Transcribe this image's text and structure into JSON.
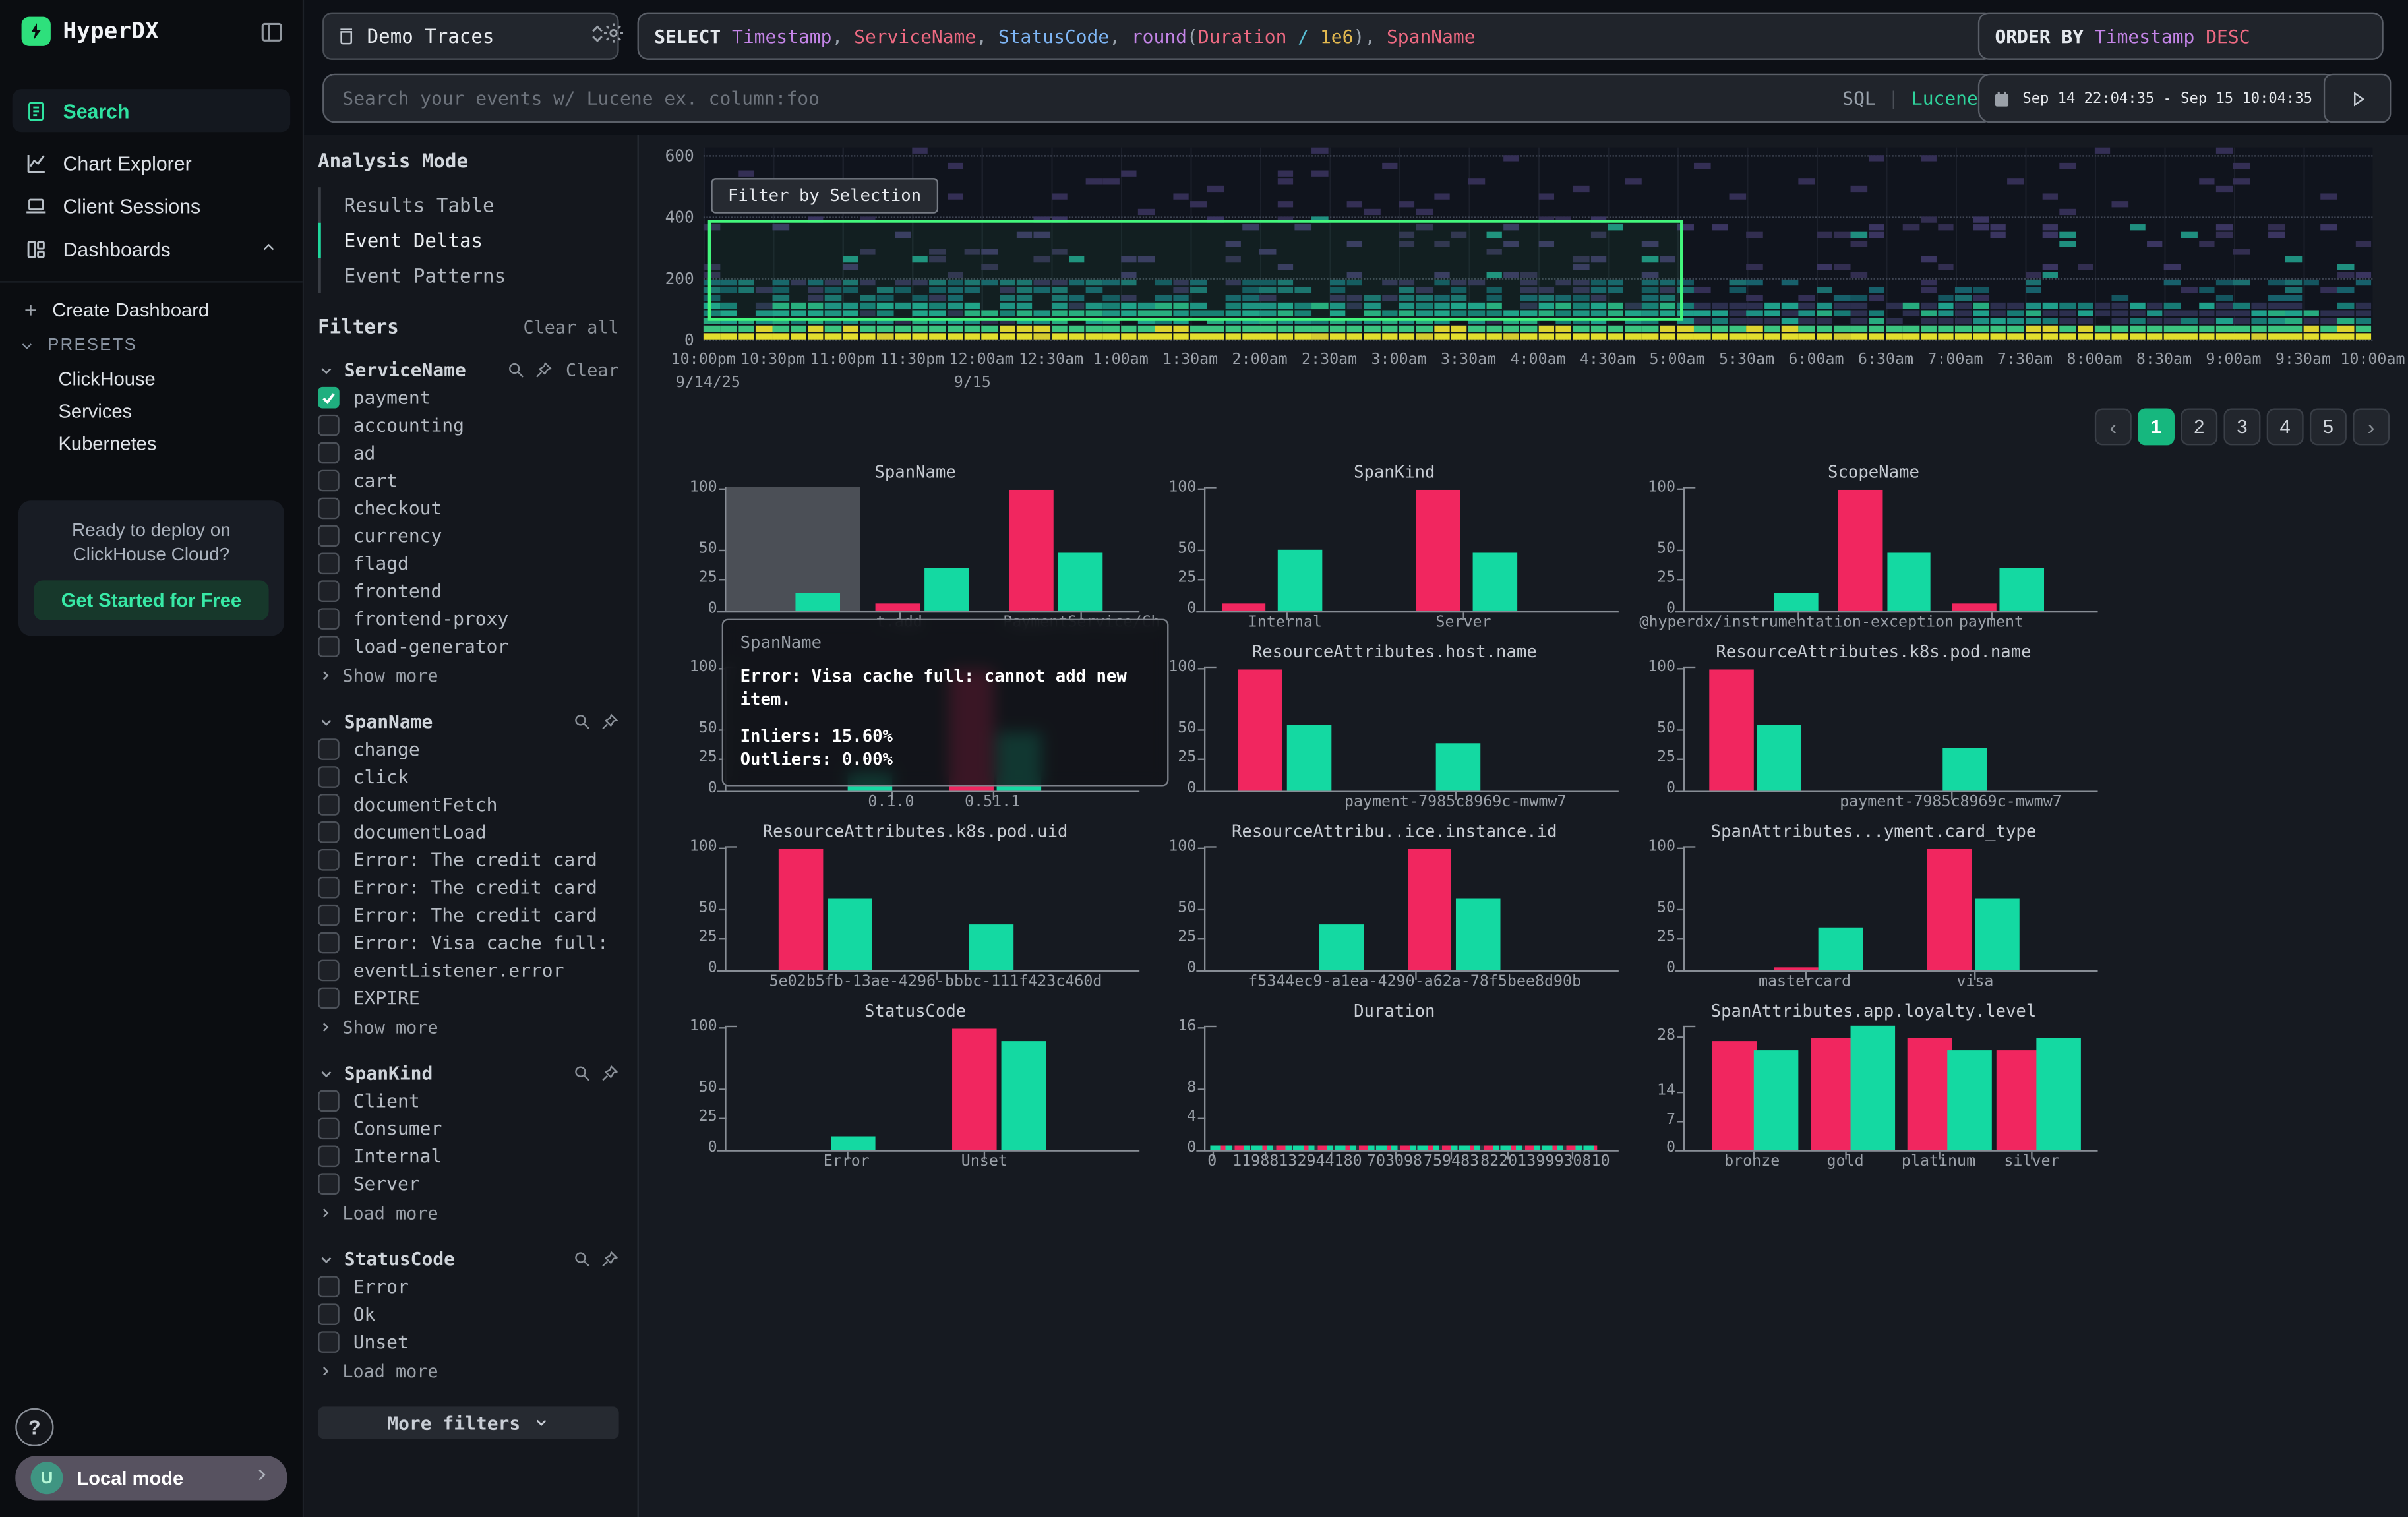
{
  "app": {
    "brand": "HyperDX"
  },
  "sidebar": {
    "items": [
      {
        "label": "Search",
        "active": true
      },
      {
        "label": "Chart Explorer"
      },
      {
        "label": "Client Sessions"
      },
      {
        "label": "Dashboards",
        "expanded": true
      }
    ],
    "submenu": {
      "create": "Create Dashboard",
      "presets": "PRESETS",
      "links": [
        "ClickHouse",
        "Services",
        "Kubernetes"
      ]
    },
    "promo": {
      "line1": "Ready to deploy on",
      "line2": "ClickHouse Cloud?",
      "cta": "Get Started for Free"
    },
    "help": "?",
    "user_initial": "U",
    "mode": "Local mode"
  },
  "topbar": {
    "source": {
      "label": "Demo Traces"
    },
    "query_tokens": [
      {
        "t": "SELECT ",
        "c": "kw"
      },
      {
        "t": "Timestamp",
        "c": "purple"
      },
      {
        "t": ", ",
        "c": "plain"
      },
      {
        "t": "ServiceName",
        "c": "red"
      },
      {
        "t": ", ",
        "c": "plain"
      },
      {
        "t": "StatusCode",
        "c": "blue"
      },
      {
        "t": ", ",
        "c": "plain"
      },
      {
        "t": "round",
        "c": "purple"
      },
      {
        "t": "(",
        "c": "plain"
      },
      {
        "t": "Duration",
        "c": "red"
      },
      {
        "t": " / ",
        "c": "cyan"
      },
      {
        "t": "1e6",
        "c": "orange"
      },
      {
        "t": ")",
        "c": "plain"
      },
      {
        "t": ", ",
        "c": "plain"
      },
      {
        "t": "SpanName",
        "c": "red"
      }
    ],
    "order_tokens": [
      {
        "t": "ORDER BY ",
        "c": "kw"
      },
      {
        "t": "Timestamp",
        "c": "purple"
      },
      {
        "t": " DESC",
        "c": "red"
      }
    ],
    "search_placeholder": "Search your events w/ Lucene ex. column:foo",
    "lang_sql": "SQL",
    "lang_lucene": "Lucene",
    "time_range": "Sep 14 22:04:35 - Sep 15 10:04:35"
  },
  "analysis": {
    "title": "Analysis Mode",
    "modes": [
      {
        "label": "Results Table"
      },
      {
        "label": "Event Deltas",
        "active": true
      },
      {
        "label": "Event Patterns"
      }
    ]
  },
  "filters": {
    "title": "Filters",
    "clear_all": "Clear all",
    "more_filters": "More filters",
    "groups": [
      {
        "name": "ServiceName",
        "clear": "Clear",
        "footer": "Show more",
        "items": [
          {
            "label": "payment",
            "checked": true
          },
          {
            "label": "accounting"
          },
          {
            "label": "ad"
          },
          {
            "label": "cart"
          },
          {
            "label": "checkout"
          },
          {
            "label": "currency"
          },
          {
            "label": "flagd"
          },
          {
            "label": "frontend"
          },
          {
            "label": "frontend-proxy"
          },
          {
            "label": "load-generator"
          }
        ]
      },
      {
        "name": "SpanName",
        "footer": "Show more",
        "items": [
          {
            "label": "change"
          },
          {
            "label": "click"
          },
          {
            "label": "documentFetch"
          },
          {
            "label": "documentLoad"
          },
          {
            "label": "Error: The credit card (…"
          },
          {
            "label": "Error: The credit card (…"
          },
          {
            "label": "Error: The credit card (…"
          },
          {
            "label": "Error: Visa cache full: …"
          },
          {
            "label": "eventListener.error"
          },
          {
            "label": "EXPIRE"
          }
        ]
      },
      {
        "name": "SpanKind",
        "footer": "Load more",
        "items": [
          {
            "label": "Client"
          },
          {
            "label": "Consumer"
          },
          {
            "label": "Internal"
          },
          {
            "label": "Server"
          }
        ]
      },
      {
        "name": "StatusCode",
        "footer": "Load more",
        "items": [
          {
            "label": "Error"
          },
          {
            "label": "Ok"
          },
          {
            "label": "Unset"
          }
        ]
      }
    ]
  },
  "heatmap": {
    "filter_button": "Filter by Selection",
    "y_ticks": [
      "600",
      "400",
      "200",
      "0"
    ],
    "x_ticks": [
      "10:00pm",
      "10:30pm",
      "11:00pm",
      "11:30pm",
      "12:00am",
      "12:30am",
      "1:00am",
      "1:30am",
      "2:00am",
      "2:30am",
      "3:00am",
      "3:30am",
      "4:00am",
      "4:30am",
      "5:00am",
      "5:30am",
      "6:00am",
      "6:30am",
      "7:00am",
      "7:30am",
      "8:00am",
      "8:30am",
      "9:00am",
      "9:30am",
      "10:00am"
    ],
    "date_labels": [
      {
        "text": "9/14/25",
        "tick": 0
      },
      {
        "text": "9/15",
        "tick": 4
      }
    ]
  },
  "pagination": {
    "prev": "‹",
    "next": "›",
    "pages": [
      "1",
      "2",
      "3",
      "4",
      "5"
    ],
    "active": "1"
  },
  "tooltip": {
    "header": "SpanName",
    "message": "Error: Visa cache full: cannot add new item.",
    "inliers": "Inliers: 15.60%",
    "outliers": "Outliers: 0.00%"
  },
  "colors": {
    "inlier": "#14d9a2",
    "outlier": "#f1265f",
    "accent": "#2fe3a1",
    "selection": "#43f77c",
    "page_active": "#16b77e",
    "brand_green": "#2ee07c"
  },
  "chart_data": [
    {
      "title": "SpanName",
      "type": "bar",
      "ymax": 103,
      "y_ticks": [
        100,
        50,
        25,
        0
      ],
      "hover": {
        "x": 0,
        "w": 33
      },
      "bars": [
        {
          "x": 17,
          "v": 15,
          "c": "inlier"
        },
        {
          "x": 37,
          "v": 7,
          "c": "outlier"
        },
        {
          "x": 49,
          "v": 35,
          "c": "inlier"
        },
        {
          "x": 70,
          "v": 100,
          "c": "outlier"
        },
        {
          "x": 82,
          "v": 48,
          "c": "inlier"
        }
      ],
      "x_labels": [
        {
          "t": "t.add",
          "x": 43
        },
        {
          "t": "PaymentService/Ch",
          "x": 88
        }
      ]
    },
    {
      "title": "SpanKind",
      "type": "bar",
      "ymax": 103,
      "y_ticks": [
        100,
        50,
        25,
        0
      ],
      "bars": [
        {
          "x": 4,
          "v": 6,
          "c": "outlier"
        },
        {
          "x": 18,
          "v": 51,
          "c": "inlier"
        },
        {
          "x": 52,
          "v": 100,
          "c": "outlier"
        },
        {
          "x": 66,
          "v": 48,
          "c": "inlier"
        }
      ],
      "x_labels": [
        {
          "t": "Internal",
          "x": 20
        },
        {
          "t": "Server",
          "x": 64
        }
      ]
    },
    {
      "title": "ScopeName",
      "type": "bar",
      "ymax": 103,
      "y_ticks": [
        100,
        50,
        25,
        0
      ],
      "bars": [
        {
          "x": 22,
          "v": 15,
          "c": "inlier"
        },
        {
          "x": 38,
          "v": 100,
          "c": "outlier"
        },
        {
          "x": 50,
          "v": 48,
          "c": "inlier"
        },
        {
          "x": 66,
          "v": 6,
          "c": "outlier"
        },
        {
          "x": 78,
          "v": 35,
          "c": "inlier"
        }
      ],
      "x_labels": [
        {
          "t": "@hyperdx/instrumentation-exception",
          "x": 28
        },
        {
          "t": "payment",
          "x": 76
        }
      ]
    },
    {
      "title": "",
      "type": "bar",
      "ymax": 103,
      "y_ticks": [
        100,
        50,
        25,
        0
      ],
      "bars": [
        {
          "x": 30,
          "v": 15,
          "c": "inlier"
        },
        {
          "x": 55,
          "v": 100,
          "c": "outlier"
        },
        {
          "x": 67,
          "v": 48,
          "c": "inlier"
        }
      ],
      "x_labels": [
        {
          "t": "0.1.0",
          "x": 41
        },
        {
          "t": "0.51.1",
          "x": 66
        }
      ]
    },
    {
      "title": "ResourceAttributes.host.name",
      "type": "bar",
      "ymax": 103,
      "y_ticks": [
        100,
        50,
        25,
        0
      ],
      "bars": [
        {
          "x": 8,
          "v": 100,
          "c": "outlier"
        },
        {
          "x": 20,
          "v": 55,
          "c": "inlier"
        },
        {
          "x": 57,
          "v": 40,
          "c": "inlier"
        }
      ],
      "x_labels": [
        {
          "t": "payment-7985c8969c-mwmw7",
          "x": 62
        }
      ]
    },
    {
      "title": "ResourceAttributes.k8s.pod.name",
      "type": "bar",
      "ymax": 103,
      "y_ticks": [
        100,
        50,
        25,
        0
      ],
      "bars": [
        {
          "x": 6,
          "v": 100,
          "c": "outlier"
        },
        {
          "x": 18,
          "v": 55,
          "c": "inlier"
        },
        {
          "x": 64,
          "v": 35,
          "c": "inlier"
        }
      ],
      "x_labels": [
        {
          "t": "payment-7985c8969c-mwmw7",
          "x": 66
        }
      ]
    },
    {
      "title": "ResourceAttributes.k8s.pod.uid",
      "type": "bar",
      "ymax": 103,
      "y_ticks": [
        100,
        50,
        25,
        0
      ],
      "bars": [
        {
          "x": 13,
          "v": 100,
          "c": "outlier"
        },
        {
          "x": 25,
          "v": 60,
          "c": "inlier"
        },
        {
          "x": 60,
          "v": 38,
          "c": "inlier"
        }
      ],
      "x_labels": [
        {
          "t": "5e02b5fb-13ae-4296-bbbc-111f423c460d",
          "x": 52
        }
      ]
    },
    {
      "title": "ResourceAttribu..ice.instance.id",
      "type": "bar",
      "ymax": 103,
      "y_ticks": [
        100,
        50,
        25,
        0
      ],
      "bars": [
        {
          "x": 28,
          "v": 38,
          "c": "inlier"
        },
        {
          "x": 50,
          "v": 100,
          "c": "outlier"
        },
        {
          "x": 62,
          "v": 60,
          "c": "inlier"
        }
      ],
      "x_labels": [
        {
          "t": "f5344ec9-a1ea-4290-a62a-78f5bee8d90b",
          "x": 52
        }
      ]
    },
    {
      "title": "SpanAttributes...yment.card_type",
      "type": "bar",
      "ymax": 103,
      "y_ticks": [
        100,
        50,
        25,
        0
      ],
      "bars": [
        {
          "x": 22,
          "v": 2,
          "c": "outlier"
        },
        {
          "x": 33,
          "v": 35,
          "c": "inlier"
        },
        {
          "x": 60,
          "v": 100,
          "c": "outlier"
        },
        {
          "x": 72,
          "v": 60,
          "c": "inlier"
        }
      ],
      "x_labels": [
        {
          "t": "mastercard",
          "x": 30
        },
        {
          "t": "visa",
          "x": 72
        }
      ]
    },
    {
      "title": "StatusCode",
      "type": "bar",
      "ymax": 103,
      "y_ticks": [
        100,
        50,
        25,
        0
      ],
      "bars": [
        {
          "x": 26,
          "v": 12,
          "c": "inlier"
        },
        {
          "x": 56,
          "v": 100,
          "c": "outlier"
        },
        {
          "x": 68,
          "v": 90,
          "c": "inlier"
        }
      ],
      "x_labels": [
        {
          "t": "Error",
          "x": 30
        },
        {
          "t": "Unset",
          "x": 64
        }
      ]
    },
    {
      "title": "Duration",
      "type": "bar",
      "ymax": 16.5,
      "y_ticks": [
        16,
        8,
        4,
        0
      ],
      "strip": true,
      "bars": [],
      "x_labels": [
        {
          "t": "0",
          "x": 2
        },
        {
          "t": "1198813",
          "x": 15
        },
        {
          "t": "2944180",
          "x": 31
        },
        {
          "t": "703098",
          "x": 47
        },
        {
          "t": "759483",
          "x": 61
        },
        {
          "t": "822013",
          "x": 75
        },
        {
          "t": "99930810",
          "x": 91
        }
      ]
    },
    {
      "title": "SpanAttributes.app.loyalty.level",
      "type": "bar",
      "ymax": 31,
      "y_ticks": [
        28,
        14,
        7,
        0
      ],
      "bars": [
        {
          "x": 7,
          "v": 27,
          "c": "outlier"
        },
        {
          "x": 17,
          "v": 25,
          "c": "inlier"
        },
        {
          "x": 31,
          "v": 28,
          "c": "outlier"
        },
        {
          "x": 41,
          "v": 31,
          "c": "inlier"
        },
        {
          "x": 55,
          "v": 28,
          "c": "outlier"
        },
        {
          "x": 65,
          "v": 25,
          "c": "inlier"
        },
        {
          "x": 77,
          "v": 25,
          "c": "outlier"
        },
        {
          "x": 87,
          "v": 28,
          "c": "inlier"
        }
      ],
      "x_labels": [
        {
          "t": "bronze",
          "x": 17
        },
        {
          "t": "gold",
          "x": 40
        },
        {
          "t": "platinum",
          "x": 63
        },
        {
          "t": "silver",
          "x": 86
        }
      ]
    }
  ]
}
